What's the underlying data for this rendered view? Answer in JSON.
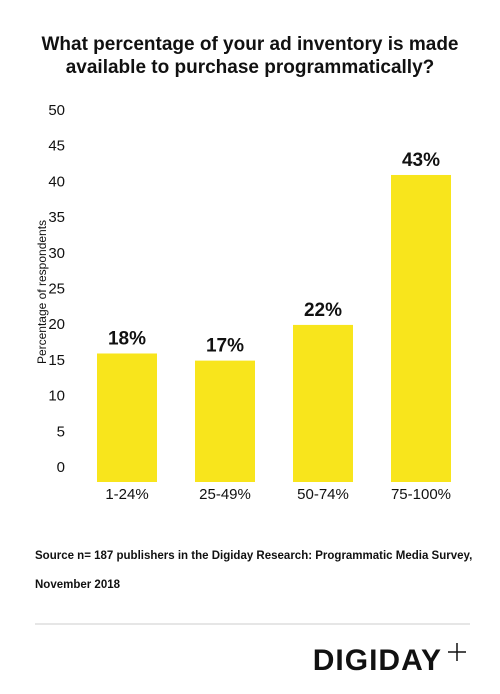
{
  "chart_data": {
    "type": "bar",
    "title": [
      "What percentage of your ad inventory is made",
      "available to purchase programmatically?"
    ],
    "y_label": "Percentage of respondents",
    "categories": [
      "1-24%",
      "25-49%",
      "50-74%",
      "75-100%"
    ],
    "values": [
      18,
      17,
      22,
      43
    ],
    "value_labels": [
      "18%",
      "17%",
      "22%",
      "43%"
    ],
    "color": "#f8e51c",
    "ylim": [
      0,
      50
    ],
    "yticks": [
      0,
      5,
      10,
      15,
      20,
      25,
      30,
      35,
      40,
      45,
      50
    ],
    "grid": false
  },
  "source": [
    "Source n= 187 publishers in the Digiday Research: Programmatic Media Survey,",
    "November 2018"
  ],
  "logo": "DIGIDAY"
}
